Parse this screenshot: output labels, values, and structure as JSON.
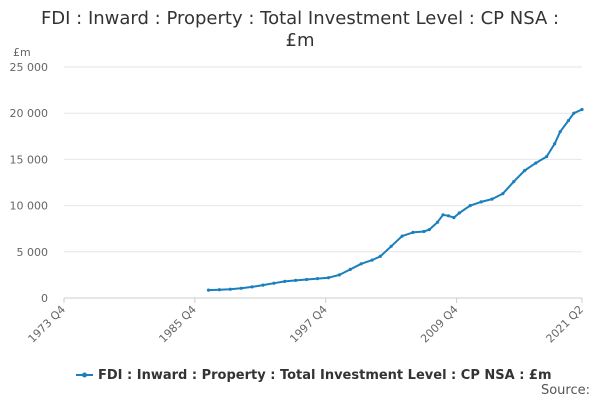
{
  "chart_data": {
    "type": "line",
    "title_line1": "FDI : Inward : Property : Total Investment Level : CP NSA :",
    "title_line2": "£m",
    "ylabel": "£m",
    "xlabel": "",
    "ylim": [
      0,
      25000
    ],
    "yticks": [
      0,
      5000,
      10000,
      15000,
      20000,
      25000
    ],
    "ytick_labels": [
      "0",
      "5 000",
      "10 000",
      "15 000",
      "20 000",
      "25 000"
    ],
    "xlim": [
      "1973 Q4",
      "2021 Q2"
    ],
    "xticks": [
      "1973 Q4",
      "1985 Q4",
      "1997 Q4",
      "2009 Q4",
      "2021 Q2"
    ],
    "grid": true,
    "legend_position": "bottom",
    "source_label": "Source:",
    "series": [
      {
        "name": "FDI : Inward : Property : Total Investment Level : CP NSA : £m",
        "color": "#1b7fbd",
        "points": [
          [
            "1987 Q1",
            850
          ],
          [
            "1988 Q1",
            900
          ],
          [
            "1989 Q1",
            950
          ],
          [
            "1990 Q1",
            1050
          ],
          [
            "1991 Q1",
            1200
          ],
          [
            "1992 Q1",
            1400
          ],
          [
            "1993 Q1",
            1600
          ],
          [
            "1994 Q1",
            1800
          ],
          [
            "1995 Q1",
            1900
          ],
          [
            "1996 Q1",
            2000
          ],
          [
            "1997 Q1",
            2100
          ],
          [
            "1998 Q1",
            2200
          ],
          [
            "1999 Q1",
            2500
          ],
          [
            "2000 Q1",
            3100
          ],
          [
            "2001 Q1",
            3700
          ],
          [
            "2002 Q1",
            4100
          ],
          [
            "2002 Q4",
            4500
          ],
          [
            "2003 Q4",
            5600
          ],
          [
            "2004 Q4",
            6700
          ],
          [
            "2005 Q4",
            7100
          ],
          [
            "2006 Q4",
            7200
          ],
          [
            "2007 Q2",
            7400
          ],
          [
            "2008 Q1",
            8200
          ],
          [
            "2008 Q3",
            9000
          ],
          [
            "2009 Q1",
            8900
          ],
          [
            "2009 Q3",
            8700
          ],
          [
            "2010 Q1",
            9200
          ],
          [
            "2011 Q1",
            10000
          ],
          [
            "2012 Q1",
            10400
          ],
          [
            "2013 Q1",
            10700
          ],
          [
            "2014 Q1",
            11300
          ],
          [
            "2015 Q1",
            12600
          ],
          [
            "2016 Q1",
            13800
          ],
          [
            "2017 Q1",
            14600
          ],
          [
            "2018 Q1",
            15300
          ],
          [
            "2018 Q4",
            16700
          ],
          [
            "2019 Q2",
            18000
          ],
          [
            "2020 Q1",
            19200
          ],
          [
            "2020 Q3",
            20000
          ],
          [
            "2021 Q2",
            20400
          ]
        ]
      }
    ]
  }
}
